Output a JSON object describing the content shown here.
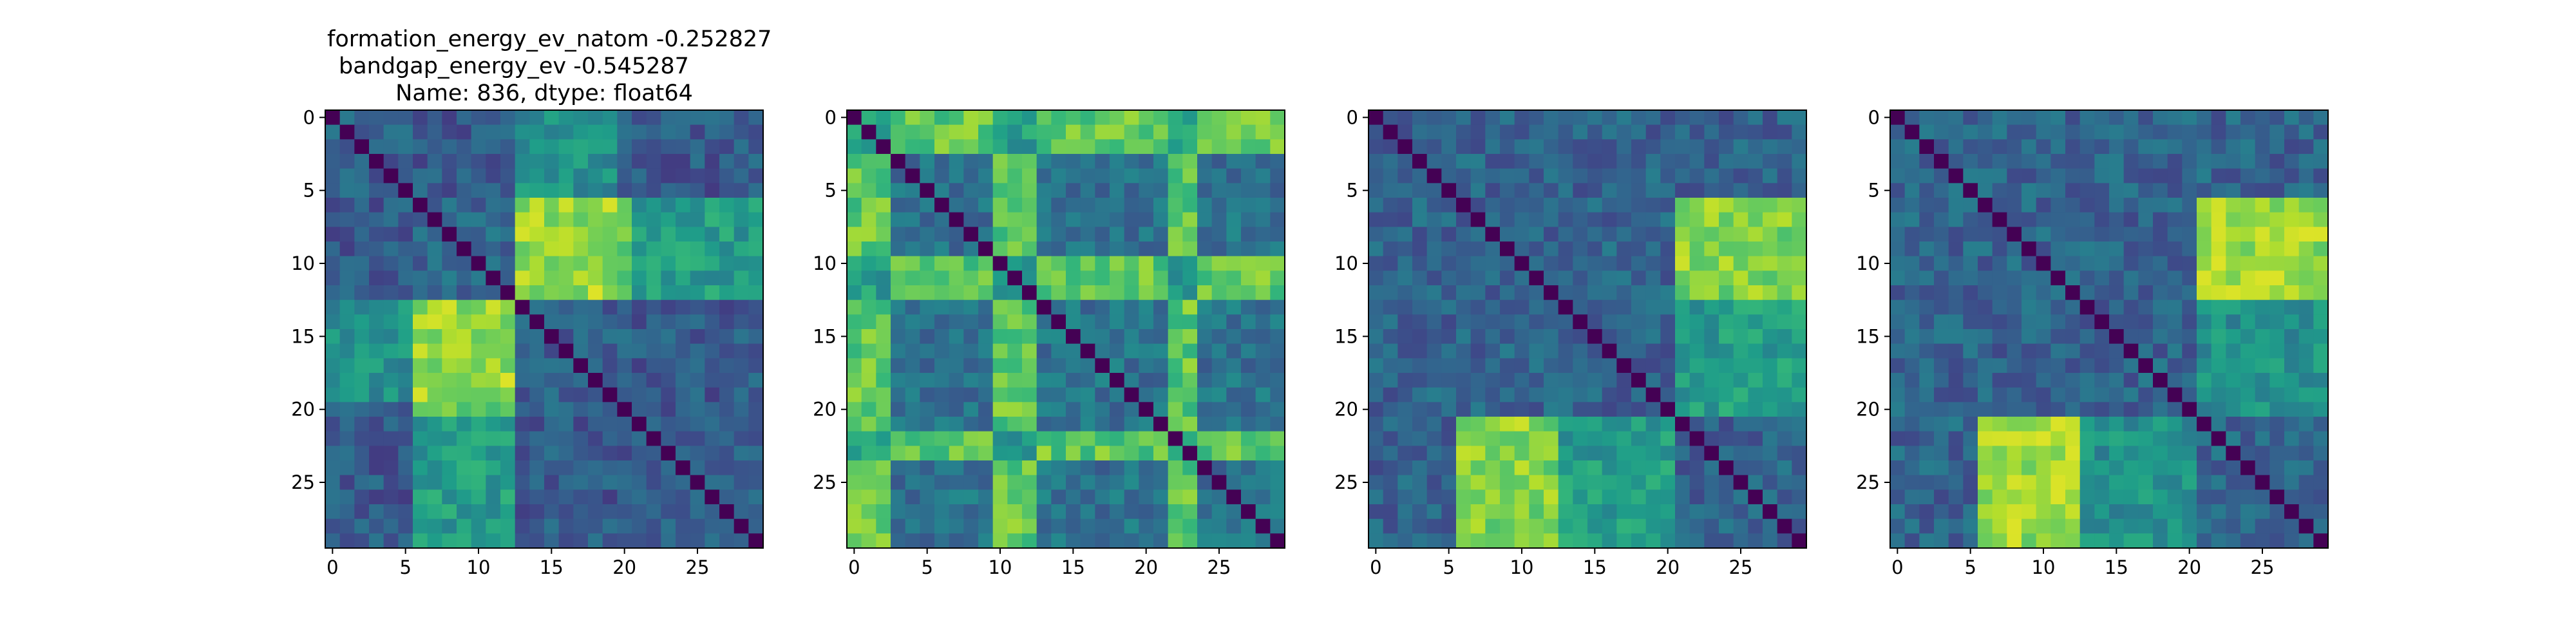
{
  "figure": {
    "title_lines": [
      "formation_energy_ev_natom    -0.252827",
      "bandgap_energy_ev            -0.545287",
      "Name: 836, dtype: float64"
    ]
  },
  "chart_data": [
    {
      "type": "heatmap",
      "title": "formation_energy_ev_natom    -0.252827\nbandgap_energy_ev            -0.545287\nName: 836, dtype: float64",
      "colormap": "viridis",
      "rows": 30,
      "cols": 30,
      "xticks": [
        "0",
        "5",
        "10",
        "15",
        "20",
        "25"
      ],
      "yticks": [
        "0",
        "5",
        "10",
        "15",
        "20",
        "25"
      ],
      "diagonal": "min",
      "blocks": [
        {
          "rows": [
            0,
            5
          ],
          "cols": [
            0,
            5
          ],
          "level": 0.3
        },
        {
          "rows": [
            6,
            12
          ],
          "cols": [
            6,
            12
          ],
          "level": 0.34
        },
        {
          "rows": [
            6,
            12
          ],
          "cols": [
            13,
            20
          ],
          "level": 0.8
        },
        {
          "rows": [
            6,
            12
          ],
          "cols": [
            21,
            29
          ],
          "level": 0.55
        },
        {
          "rows": [
            13,
            19
          ],
          "cols": [
            0,
            5
          ],
          "level": 0.5
        },
        {
          "rows": [
            13,
            19
          ],
          "cols": [
            6,
            12
          ],
          "level": 0.85
        },
        {
          "rows": [
            13,
            20
          ],
          "cols": [
            13,
            20
          ],
          "level": 0.3
        },
        {
          "rows": [
            21,
            29
          ],
          "cols": [
            21,
            29
          ],
          "level": 0.3
        }
      ],
      "base_level": 0.28
    },
    {
      "type": "heatmap",
      "colormap": "viridis",
      "rows": 30,
      "cols": 30,
      "xticks": [
        "0",
        "5",
        "10",
        "15",
        "20",
        "25"
      ],
      "yticks": [
        "0",
        "5",
        "10",
        "15",
        "20",
        "25"
      ],
      "diagonal": "min",
      "bright_rows": [
        0,
        1,
        2,
        10,
        11,
        12,
        22,
        23
      ],
      "bright_cols": [
        0,
        1,
        2,
        10,
        11,
        12,
        22,
        23
      ],
      "bright_level": 0.75,
      "base_level": 0.38
    },
    {
      "type": "heatmap",
      "colormap": "viridis",
      "rows": 30,
      "cols": 30,
      "xticks": [
        "0",
        "5",
        "10",
        "15",
        "20",
        "25"
      ],
      "yticks": [
        "0",
        "5",
        "10",
        "15",
        "20",
        "25"
      ],
      "diagonal": "min",
      "blocks": [
        {
          "rows": [
            6,
            12
          ],
          "cols": [
            21,
            29
          ],
          "level": 0.78
        },
        {
          "rows": [
            21,
            29
          ],
          "cols": [
            6,
            12
          ],
          "level": 0.82
        },
        {
          "rows": [
            21,
            29
          ],
          "cols": [
            13,
            20
          ],
          "level": 0.55
        }
      ],
      "base_level": 0.32
    },
    {
      "type": "heatmap",
      "colormap": "viridis",
      "rows": 30,
      "cols": 30,
      "xticks": [
        "0",
        "5",
        "10",
        "15",
        "20",
        "25"
      ],
      "yticks": [
        "0",
        "5",
        "10",
        "15",
        "20",
        "25"
      ],
      "diagonal": "min",
      "blocks": [
        {
          "rows": [
            6,
            12
          ],
          "cols": [
            21,
            29
          ],
          "level": 0.8
        },
        {
          "rows": [
            21,
            29
          ],
          "cols": [
            6,
            12
          ],
          "level": 0.84
        },
        {
          "rows": [
            21,
            29
          ],
          "cols": [
            13,
            20
          ],
          "level": 0.5
        }
      ],
      "base_level": 0.32
    }
  ]
}
